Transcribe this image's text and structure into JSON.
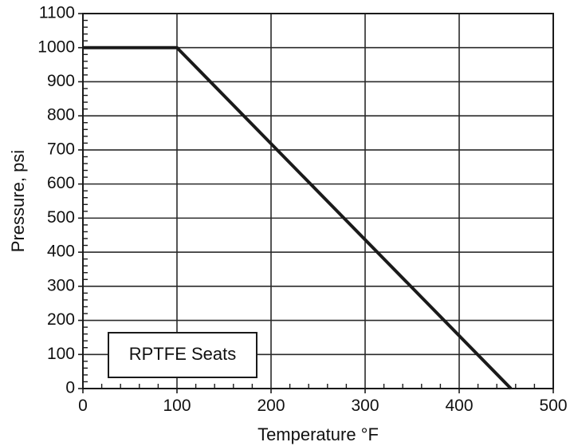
{
  "chart_data": {
    "type": "line",
    "title": "",
    "xlabel": "Temperature °F",
    "ylabel": "Pressure, psi",
    "xlim": [
      0,
      500
    ],
    "ylim": [
      0,
      1100
    ],
    "xticks": [
      0,
      100,
      200,
      300,
      400,
      500
    ],
    "yticks": [
      0,
      100,
      200,
      300,
      400,
      500,
      600,
      700,
      800,
      900,
      1000,
      1100
    ],
    "xtick_labels": [
      "0",
      "100",
      "200",
      "300",
      "400",
      "500"
    ],
    "ytick_labels": [
      "0",
      "100",
      "200",
      "300",
      "400",
      "500",
      "600",
      "700",
      "800",
      "900",
      "1000",
      "1100"
    ],
    "grid": true,
    "minor_ticks": true,
    "series": [
      {
        "x": [
          0,
          100,
          455
        ],
        "y": [
          1000,
          1000,
          0
        ],
        "color": "#1a1a1a"
      }
    ],
    "annotations": [
      {
        "text": "RPTFE Seats",
        "placement": "bottom-left"
      }
    ]
  }
}
